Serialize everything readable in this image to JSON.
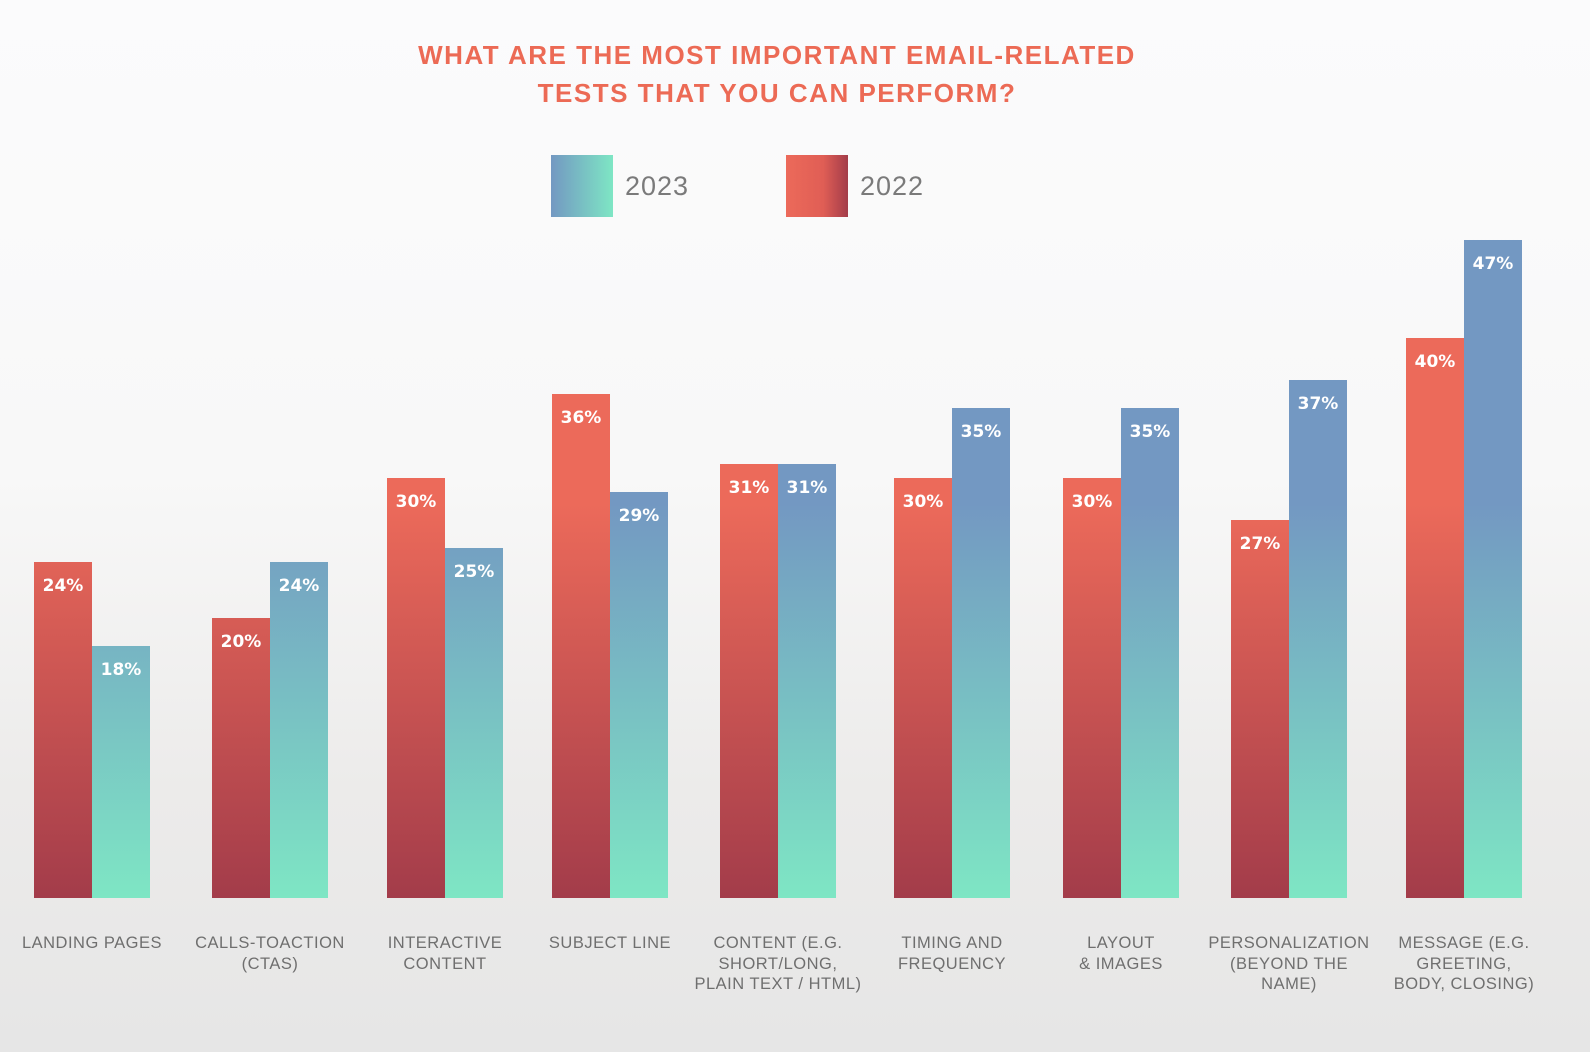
{
  "chart_data": {
    "type": "bar",
    "title_lines": [
      "WHAT ARE THE MOST IMPORTANT EMAIL-RELATED",
      "TESTS THAT YOU CAN PERFORM?"
    ],
    "categories": [
      [
        "LANDING PAGES"
      ],
      [
        "CALLS-TOACTION",
        "(CTAS)"
      ],
      [
        "INTERACTIVE",
        "CONTENT"
      ],
      [
        "SUBJECT LINE"
      ],
      [
        "CONTENT (E.G.",
        "SHORT/LONG,",
        "PLAIN TEXT / HTML)"
      ],
      [
        "TIMING AND",
        "FREQUENCY"
      ],
      [
        "LAYOUT",
        "& IMAGES"
      ],
      [
        "PERSONALIZATION",
        "(BEYOND THE",
        "NAME)"
      ],
      [
        "MESSAGE (E.G.",
        "GREETING,",
        "BODY, CLOSING)"
      ]
    ],
    "series": [
      {
        "name": "2022",
        "values": [
          24,
          20,
          30,
          36,
          31,
          30,
          30,
          27,
          40
        ],
        "color_top": "#ec6a5a",
        "color_bottom": "#a33c4a"
      },
      {
        "name": "2023",
        "values": [
          18,
          24,
          25,
          29,
          31,
          35,
          35,
          37,
          47
        ],
        "color_top": "#7398c2",
        "color_bottom": "#7ee6c4"
      }
    ],
    "legend_order": [
      "2023",
      "2022"
    ],
    "legend_placement": "top-center",
    "value_suffix": "%",
    "ylim": [
      0,
      50
    ],
    "grid": false,
    "xlabel": "",
    "ylabel": ""
  }
}
